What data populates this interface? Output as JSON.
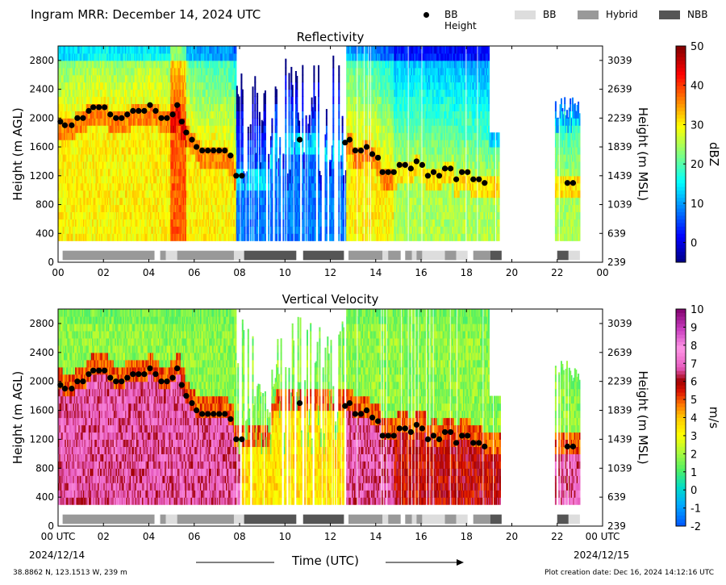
{
  "header": {
    "title": "Ingram MRR:  December 14, 2024 UTC",
    "legend": [
      {
        "kind": "dot",
        "label": "BB Height",
        "color": "#000000"
      },
      {
        "kind": "box",
        "label": "BB",
        "color": "#dddddd"
      },
      {
        "kind": "box",
        "label": "Hybrid",
        "color": "#999999"
      },
      {
        "kind": "box",
        "label": "NBB",
        "color": "#555555"
      }
    ]
  },
  "footer": {
    "location": "38.8862 N, 123.1513 W, 239 m",
    "creation": "Plot creation date: Dec 16, 2024 14:12:16 UTC"
  },
  "chart_data": [
    {
      "type": "heatmap",
      "title": "Reflectivity",
      "ylabel": "Height (m AGL)",
      "ylabel_right": "Height (m MSL)",
      "xlabel": "",
      "colorbar_label": "dBZ",
      "xlim": [
        0,
        24
      ],
      "ylim": [
        0,
        3000
      ],
      "x_ticks": [
        "00",
        "02",
        "04",
        "06",
        "08",
        "10",
        "12",
        "14",
        "16",
        "18",
        "20",
        "22",
        "00"
      ],
      "y_ticks_left": [
        "0",
        "400",
        "800",
        "1200",
        "1600",
        "2000",
        "2400",
        "2800"
      ],
      "y_ticks_right": [
        "239",
        "639",
        "1039",
        "1439",
        "1839",
        "2239",
        "2639",
        "3039"
      ],
      "colorbar_ticks": [
        "0",
        "10",
        "20",
        "30",
        "40",
        "50"
      ],
      "colorbar_range": [
        -5,
        50
      ],
      "colormap": "jet"
    },
    {
      "type": "heatmap",
      "title": "Vertical Velocity",
      "ylabel": "Height (m AGL)",
      "ylabel_right": "Height (m MSL)",
      "xlabel": "Time (UTC)",
      "colorbar_label": "m/s",
      "xlim": [
        0,
        24
      ],
      "ylim": [
        0,
        3000
      ],
      "x_ticks": [
        "00 UTC",
        "02",
        "04",
        "06",
        "08",
        "10",
        "12",
        "14",
        "16",
        "18",
        "20",
        "22",
        "00 UTC"
      ],
      "x_dates": [
        "2024/12/14",
        "2024/12/15"
      ],
      "y_ticks_left": [
        "0",
        "400",
        "800",
        "1200",
        "1600",
        "2000",
        "2400",
        "2800"
      ],
      "y_ticks_right": [
        "239",
        "639",
        "1039",
        "1439",
        "1839",
        "2239",
        "2639",
        "3039"
      ],
      "colorbar_ticks": [
        "-2",
        "-1",
        "0",
        "1",
        "2",
        "3",
        "4",
        "5",
        "6",
        "7",
        "8",
        "9",
        "10"
      ],
      "colorbar_range": [
        -2,
        10
      ],
      "colormap": "velocity"
    }
  ],
  "bb_height": {
    "hours": [
      0.1,
      0.3,
      0.6,
      0.85,
      1.1,
      1.35,
      1.55,
      1.8,
      2.05,
      2.3,
      2.55,
      2.8,
      3.05,
      3.3,
      3.55,
      3.8,
      4.05,
      4.3,
      4.55,
      4.8,
      5.05,
      5.25,
      5.45,
      5.65,
      5.9,
      6.1,
      6.35,
      6.6,
      6.85,
      7.1,
      7.35,
      7.6,
      7.85,
      8.1,
      10.65,
      12.65,
      12.85,
      13.1,
      13.35,
      13.6,
      13.85,
      14.1,
      14.3,
      14.55,
      14.8,
      15.05,
      15.3,
      15.55,
      15.8,
      16.05,
      16.3,
      16.55,
      16.8,
      17.05,
      17.3,
      17.55,
      17.8,
      18.05,
      18.3,
      18.55,
      18.8,
      22.45,
      22.7
    ],
    "heights": [
      1950,
      1900,
      1900,
      2000,
      2000,
      2100,
      2150,
      2150,
      2150,
      2050,
      2000,
      2000,
      2050,
      2100,
      2100,
      2100,
      2180,
      2100,
      2000,
      2000,
      2050,
      2180,
      1950,
      1800,
      1700,
      1600,
      1550,
      1550,
      1550,
      1550,
      1550,
      1480,
      1200,
      1200,
      1700,
      1660,
      1700,
      1550,
      1550,
      1600,
      1500,
      1450,
      1250,
      1250,
      1250,
      1350,
      1350,
      1300,
      1400,
      1350,
      1200,
      1250,
      1200,
      1300,
      1300,
      1150,
      1250,
      1250,
      1150,
      1150,
      1100,
      1100,
      1100
    ]
  },
  "classification": [
    {
      "start": 0.2,
      "end": 4.25,
      "type": "Hybrid"
    },
    {
      "start": 4.5,
      "end": 4.75,
      "type": "Hybrid"
    },
    {
      "start": 4.75,
      "end": 5.25,
      "type": "BB"
    },
    {
      "start": 5.25,
      "end": 7.75,
      "type": "Hybrid"
    },
    {
      "start": 7.75,
      "end": 8.2,
      "type": "BB"
    },
    {
      "start": 8.2,
      "end": 10.5,
      "type": "NBB"
    },
    {
      "start": 10.8,
      "end": 12.6,
      "type": "NBB"
    },
    {
      "start": 12.8,
      "end": 14.3,
      "type": "Hybrid"
    },
    {
      "start": 14.3,
      "end": 14.55,
      "type": "BB"
    },
    {
      "start": 14.55,
      "end": 15.1,
      "type": "Hybrid"
    },
    {
      "start": 15.3,
      "end": 15.6,
      "type": "Hybrid"
    },
    {
      "start": 15.6,
      "end": 15.8,
      "type": "BB"
    },
    {
      "start": 15.8,
      "end": 16.05,
      "type": "Hybrid"
    },
    {
      "start": 16.05,
      "end": 17.05,
      "type": "BB"
    },
    {
      "start": 17.05,
      "end": 17.55,
      "type": "Hybrid"
    },
    {
      "start": 17.55,
      "end": 18.05,
      "type": "BB"
    },
    {
      "start": 18.3,
      "end": 19.05,
      "type": "Hybrid"
    },
    {
      "start": 19.05,
      "end": 19.55,
      "type": "NBB"
    },
    {
      "start": 22.0,
      "end": 22.5,
      "type": "NBB"
    },
    {
      "start": 22.5,
      "end": 23.0,
      "type": "BB"
    }
  ]
}
